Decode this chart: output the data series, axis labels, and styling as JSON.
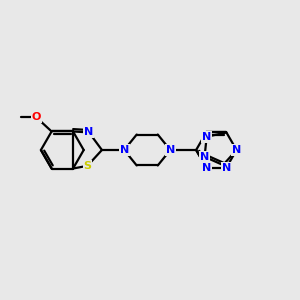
{
  "bg_color": "#e8e8e8",
  "bond_color": "#000000",
  "N_color": "#0000ff",
  "S_color": "#cccc00",
  "O_color": "#ff0000",
  "line_width": 1.6,
  "figsize": [
    3.0,
    3.0
  ],
  "dpi": 100,
  "xlim": [
    0,
    10
  ],
  "ylim": [
    1,
    9
  ]
}
